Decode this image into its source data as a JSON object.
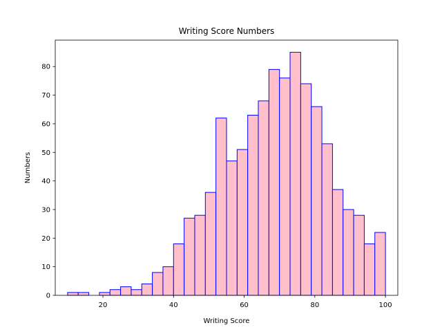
{
  "chart_data": {
    "type": "bar",
    "title": "Writing Score Numbers",
    "xlabel": "Writing Score",
    "ylabel": "Numbers",
    "xlim": [
      6.5,
      103.5
    ],
    "ylim": [
      0,
      89.25
    ],
    "xticks": [
      20,
      40,
      60,
      80,
      100
    ],
    "yticks": [
      0,
      10,
      20,
      30,
      40,
      50,
      60,
      70,
      80
    ],
    "bin_edges": [
      10,
      13,
      16,
      19,
      22,
      25,
      28,
      31,
      34,
      37,
      40,
      43,
      46,
      49,
      52,
      55,
      58,
      61,
      64,
      67,
      70,
      73,
      76,
      79,
      82,
      85,
      88,
      91,
      94,
      97,
      100
    ],
    "values": [
      1,
      1,
      0,
      1,
      2,
      3,
      2,
      4,
      8,
      10,
      18,
      27,
      28,
      36,
      62,
      47,
      51,
      63,
      68,
      79,
      76,
      85,
      74,
      66,
      53,
      37,
      30,
      28,
      18,
      22
    ],
    "bar_color": "#ffc0cb",
    "edge_color": "#0000ff",
    "grid": false
  }
}
